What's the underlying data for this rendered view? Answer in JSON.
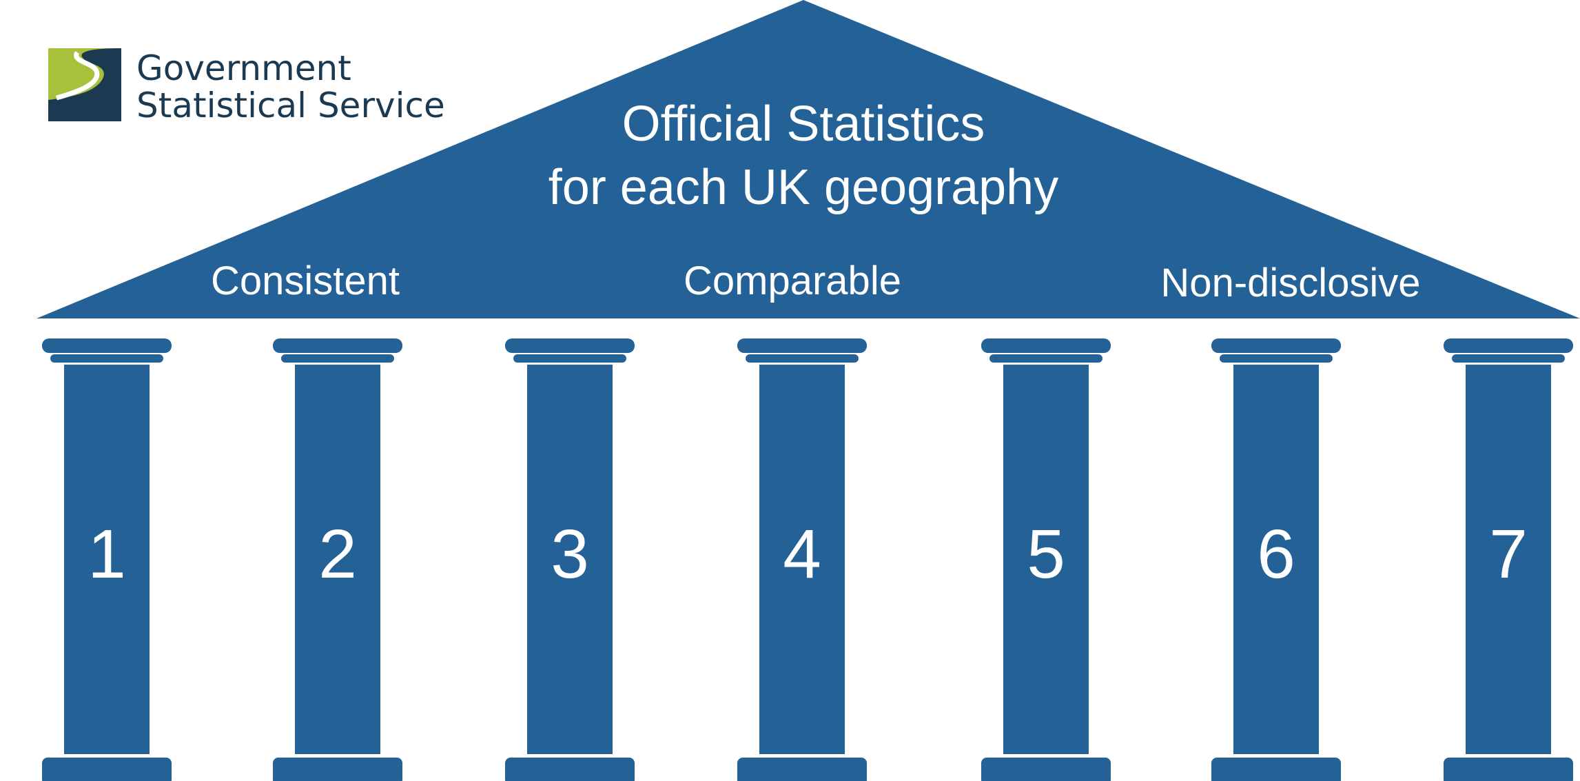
{
  "logo": {
    "line1": "Government",
    "line2": "Statistical Service",
    "green": "#a8c13d",
    "navy": "#1b3a52"
  },
  "title": {
    "line1": "Official Statistics",
    "line2": "for each UK geography"
  },
  "principles": [
    "Consistent",
    "Comparable",
    "Non-disclosive"
  ],
  "pillars": [
    "1",
    "2",
    "3",
    "4",
    "5",
    "6",
    "7"
  ],
  "colors": {
    "structure": "#236196",
    "text": "#ffffff"
  }
}
